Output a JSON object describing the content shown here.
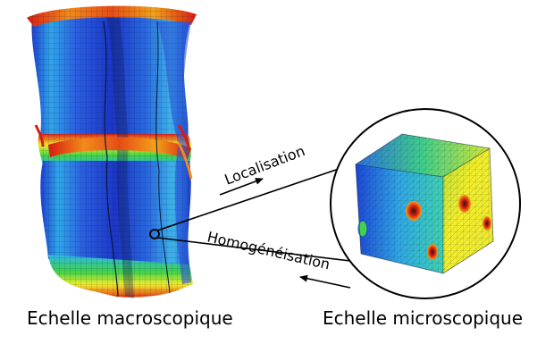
{
  "labels": {
    "localisation": "Localisation",
    "homogeneisation": "Homogénéisation",
    "macro_scale": "Echelle macroscopique",
    "micro_scale": "Echelle microscopique"
  },
  "colors": {
    "scale_blue": "#1f3fd0",
    "scale_cyan": "#2fb8e8",
    "scale_green": "#3fd24a",
    "scale_yellow": "#f2ee2a",
    "scale_orange": "#f28a1a",
    "scale_red": "#d81c10",
    "mesh_line": "#0b1a3a",
    "arrow": "#000000"
  }
}
